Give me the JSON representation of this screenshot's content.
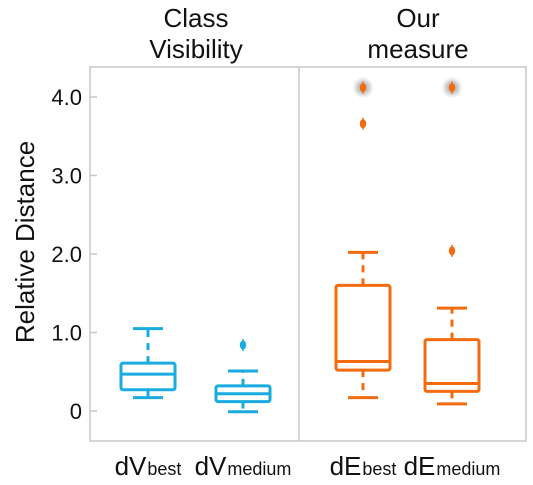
{
  "chart_data": {
    "type": "box",
    "ylabel": "Relative Distance",
    "ylim": [
      -0.4,
      4.4
    ],
    "yticks": [
      {
        "value": 0,
        "label": "0"
      },
      {
        "value": 1.0,
        "label": "1.0"
      },
      {
        "value": 2.0,
        "label": "2.0"
      },
      {
        "value": 3.0,
        "label": "3.0"
      },
      {
        "value": 4.0,
        "label": "4.0"
      }
    ],
    "panels": [
      {
        "title_lines": [
          "Class",
          "Visibility"
        ],
        "color": "#1aabe0"
      },
      {
        "title_lines": [
          "Our",
          "measure"
        ],
        "color": "#f26b10"
      }
    ],
    "boxes": [
      {
        "main": "dV",
        "sub": "best",
        "panel": 0,
        "color": "#1aabe0",
        "whisker_low": 0.17,
        "q1": 0.27,
        "median": 0.47,
        "q3": 0.61,
        "whisker_high": 1.05,
        "outliers": []
      },
      {
        "main": "dV",
        "sub": "medium",
        "panel": 0,
        "color": "#1aabe0",
        "whisker_low": -0.01,
        "q1": 0.12,
        "median": 0.22,
        "q3": 0.32,
        "whisker_high": 0.51,
        "outliers": [
          0.84
        ]
      },
      {
        "main": "dE",
        "sub": "best",
        "panel": 1,
        "color": "#f26b10",
        "whisker_low": 0.17,
        "q1": 0.52,
        "median": 0.63,
        "q3": 1.6,
        "whisker_high": 2.02,
        "outliers": [
          3.66,
          4.12
        ]
      },
      {
        "main": "dE",
        "sub": "medium",
        "panel": 1,
        "color": "#f26b10",
        "whisker_low": 0.09,
        "q1": 0.25,
        "median": 0.35,
        "q3": 0.91,
        "whisker_high": 1.31,
        "outliers": [
          2.04,
          4.12
        ]
      }
    ],
    "highlighted_outliers": [
      4.12
    ],
    "grid": false,
    "legend": "none"
  }
}
